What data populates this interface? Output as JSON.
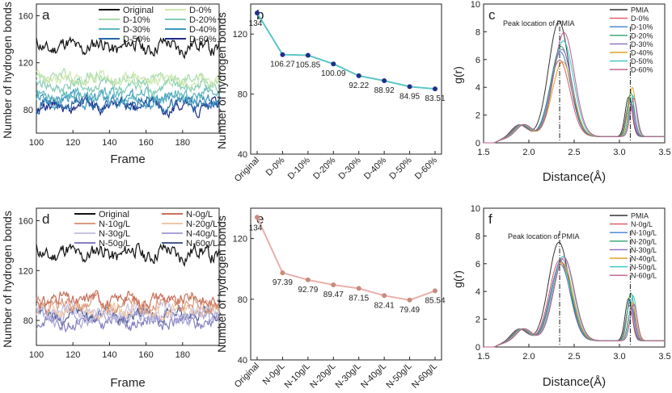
{
  "chart_data": [
    {
      "panel": "a",
      "type": "line",
      "xlabel": "Frame",
      "ylabel": "Number of hydrogen bonds",
      "xlim": [
        100,
        200
      ],
      "ylim": [
        60,
        170
      ],
      "xticks": [
        "100",
        "120",
        "140",
        "160",
        "180"
      ],
      "xtick_values": [
        100,
        120,
        140,
        160,
        180
      ],
      "yticks": [
        "80",
        "120",
        "160"
      ],
      "ytick_values": [
        80,
        120,
        160
      ],
      "legend": [
        {
          "name": "Original",
          "color": "#111111"
        },
        {
          "name": "D-0%",
          "color": "#cfe8b0"
        },
        {
          "name": "D-10%",
          "color": "#a9dcaa"
        },
        {
          "name": "D-20%",
          "color": "#85ccb5"
        },
        {
          "name": "D-30%",
          "color": "#5db7c0"
        },
        {
          "name": "D-40%",
          "color": "#3d97bf"
        },
        {
          "name": "D-50%",
          "color": "#2468a8"
        },
        {
          "name": "D-60%",
          "color": "#1d2d87"
        }
      ],
      "series": [
        {
          "name": "Original",
          "mean": 134,
          "amp": 6,
          "seed": 11,
          "color": "#111111"
        },
        {
          "name": "D-0%",
          "mean": 106,
          "amp": 5,
          "seed": 23,
          "color": "#cfe8b0"
        },
        {
          "name": "D-10%",
          "mean": 106,
          "amp": 5,
          "seed": 37,
          "color": "#a9dcaa"
        },
        {
          "name": "D-20%",
          "mean": 100,
          "amp": 5,
          "seed": 41,
          "color": "#85ccb5"
        },
        {
          "name": "D-30%",
          "mean": 92,
          "amp": 5,
          "seed": 53,
          "color": "#5db7c0"
        },
        {
          "name": "D-40%",
          "mean": 89,
          "amp": 5,
          "seed": 67,
          "color": "#3d97bf"
        },
        {
          "name": "D-50%",
          "mean": 85,
          "amp": 5,
          "seed": 71,
          "color": "#2468a8"
        },
        {
          "name": "D-60%",
          "mean": 83,
          "amp": 5,
          "seed": 89,
          "color": "#1d2d87"
        }
      ]
    },
    {
      "panel": "b",
      "type": "line",
      "ylabel": "Number of hydrogen bonds",
      "categories": [
        "Original",
        "D-0%",
        "D-10%",
        "D-20%",
        "D-30%",
        "D-40%",
        "D-50%",
        "D-60%"
      ],
      "values": [
        134,
        106.27,
        105.85,
        100.09,
        92.22,
        88.92,
        84.95,
        83.51
      ],
      "labels": [
        "134",
        "106.27",
        "105.85",
        "100.09",
        "92.22",
        "88.92",
        "84.95",
        "83.51"
      ],
      "ylim": [
        40,
        140
      ],
      "yticks": [
        "40",
        "80",
        "120"
      ],
      "ytick_values": [
        40,
        80,
        120
      ],
      "line_color": "#5cc6c3",
      "marker_color": "#1f2f8a"
    },
    {
      "panel": "c",
      "type": "line",
      "xlabel": "Distance(Å)",
      "ylabel": "g(r)",
      "xlim": [
        1.5,
        3.5
      ],
      "ylim": [
        0,
        10
      ],
      "xticks": [
        "1.5",
        "2.0",
        "2.5",
        "3.0",
        "3.5"
      ],
      "xtick_values": [
        1.5,
        2.0,
        2.5,
        3.0,
        3.5
      ],
      "yticks": [
        "0",
        "2",
        "4",
        "6",
        "8",
        "10"
      ],
      "ytick_values": [
        0,
        2,
        4,
        6,
        8,
        10
      ],
      "annotation": "Peak location of PMIA",
      "peak_marks": [
        2.34,
        3.12
      ],
      "legend": [
        {
          "name": "PMIA",
          "color": "#333333"
        },
        {
          "name": "D-0%",
          "color": "#e0525e"
        },
        {
          "name": "D-10%",
          "color": "#3e7fd6"
        },
        {
          "name": "D-20%",
          "color": "#2ea56d"
        },
        {
          "name": "D-30%",
          "color": "#8f6cc0"
        },
        {
          "name": "D-40%",
          "color": "#e3a020"
        },
        {
          "name": "D-50%",
          "color": "#2fc6c8"
        },
        {
          "name": "D-60%",
          "color": "#c05a8c"
        }
      ],
      "series": [
        {
          "name": "PMIA",
          "peak1": 8.8,
          "peak2": 3.4,
          "color": "#333333"
        },
        {
          "name": "D-0%",
          "peak1": 6.0,
          "peak2": 3.0,
          "color": "#e0525e"
        },
        {
          "name": "D-10%",
          "peak1": 6.6,
          "peak2": 3.2,
          "color": "#3e7fd6"
        },
        {
          "name": "D-20%",
          "peak1": 7.0,
          "peak2": 3.7,
          "color": "#2ea56d"
        },
        {
          "name": "D-30%",
          "peak1": 6.8,
          "peak2": 2.9,
          "color": "#8f6cc0"
        },
        {
          "name": "D-40%",
          "peak1": 5.9,
          "peak2": 4.1,
          "color": "#e3a020"
        },
        {
          "name": "D-50%",
          "peak1": 7.4,
          "peak2": 3.5,
          "color": "#2fc6c8"
        },
        {
          "name": "D-60%",
          "peak1": 8.0,
          "peak2": 3.3,
          "color": "#c05a8c"
        }
      ]
    },
    {
      "panel": "d",
      "type": "line",
      "xlabel": "Frame",
      "ylabel": "Number of hydrogen bonds",
      "xlim": [
        100,
        200
      ],
      "ylim": [
        60,
        170
      ],
      "xticks": [
        "100",
        "120",
        "140",
        "160",
        "180"
      ],
      "xtick_values": [
        100,
        120,
        140,
        160,
        180
      ],
      "yticks": [
        "80",
        "120",
        "160"
      ],
      "ytick_values": [
        80,
        120,
        160
      ],
      "legend": [
        {
          "name": "Original",
          "color": "#111111"
        },
        {
          "name": "N-0g/L",
          "color": "#c8705a"
        },
        {
          "name": "N-10g/L",
          "color": "#d99a7e"
        },
        {
          "name": "N-20g/L",
          "color": "#f2c7a5"
        },
        {
          "name": "N-30g/L",
          "color": "#c8c4e0"
        },
        {
          "name": "N-40g/L",
          "color": "#a9a4d6"
        },
        {
          "name": "N-50g/L",
          "color": "#8480bf"
        },
        {
          "name": "N-60g/L",
          "color": "#4a5a8c"
        }
      ],
      "series": [
        {
          "name": "Original",
          "mean": 134,
          "amp": 6,
          "seed": 11,
          "color": "#111111"
        },
        {
          "name": "N-0g/L",
          "mean": 97,
          "amp": 5,
          "seed": 31,
          "color": "#c8705a"
        },
        {
          "name": "N-10g/L",
          "mean": 93,
          "amp": 5,
          "seed": 43,
          "color": "#d99a7e"
        },
        {
          "name": "N-20g/L",
          "mean": 89,
          "amp": 5,
          "seed": 59,
          "color": "#f2c7a5"
        },
        {
          "name": "N-30g/L",
          "mean": 87,
          "amp": 5,
          "seed": 61,
          "color": "#c8c4e0"
        },
        {
          "name": "N-40g/L",
          "mean": 82,
          "amp": 5,
          "seed": 73,
          "color": "#a9a4d6"
        },
        {
          "name": "N-50g/L",
          "mean": 79,
          "amp": 5,
          "seed": 83,
          "color": "#8480bf"
        },
        {
          "name": "N-60g/L",
          "mean": 85,
          "amp": 5,
          "seed": 97,
          "color": "#4a5a8c"
        }
      ]
    },
    {
      "panel": "e",
      "type": "line",
      "ylabel": "Number of hydrogen bonds",
      "categories": [
        "Original",
        "N-0g/L",
        "N-10g/L",
        "N-20g/L",
        "N-30g/L",
        "N-40g/L",
        "N-50g/L",
        "N-60g/L"
      ],
      "values": [
        134,
        97.39,
        92.79,
        89.47,
        87.15,
        82.41,
        79.49,
        85.54
      ],
      "labels": [
        "134",
        "97.39",
        "92.79",
        "89.47",
        "87.15",
        "82.41",
        "79.49",
        "85.54"
      ],
      "ylim": [
        40,
        140
      ],
      "yticks": [
        "40",
        "80",
        "120"
      ],
      "ytick_values": [
        40,
        80,
        120
      ],
      "line_color": "#eab0ac",
      "marker_color": "#c98a7c"
    },
    {
      "panel": "f",
      "type": "line",
      "xlabel": "Distance(Å)",
      "ylabel": "g(r)",
      "xlim": [
        1.5,
        3.5
      ],
      "ylim": [
        0,
        10
      ],
      "xticks": [
        "1.5",
        "2.0",
        "2.5",
        "3.0",
        "3.5"
      ],
      "xtick_values": [
        1.5,
        2.0,
        2.5,
        3.0,
        3.5
      ],
      "yticks": [
        "0",
        "2",
        "4",
        "6",
        "8",
        "10"
      ],
      "ytick_values": [
        0,
        2,
        4,
        6,
        8,
        10
      ],
      "annotation": "Peak location of PMIA",
      "peak_marks": [
        2.34,
        3.12
      ],
      "legend": [
        {
          "name": "PMIA",
          "color": "#333333"
        },
        {
          "name": "N-0g/L",
          "color": "#e0525e"
        },
        {
          "name": "N-10g/L",
          "color": "#3e7fd6"
        },
        {
          "name": "N-20g/L",
          "color": "#2ea56d"
        },
        {
          "name": "N-30g/L",
          "color": "#8f6cc0"
        },
        {
          "name": "N-40g/L",
          "color": "#e3a020"
        },
        {
          "name": "N-50g/L",
          "color": "#2fc6c8"
        },
        {
          "name": "N-60g/L",
          "color": "#c05a8c"
        }
      ],
      "series": [
        {
          "name": "PMIA",
          "peak1": 7.6,
          "peak2": 3.6,
          "color": "#333333"
        },
        {
          "name": "N-0g/L",
          "peak1": 6.3,
          "peak2": 3.1,
          "color": "#e0525e"
        },
        {
          "name": "N-10g/L",
          "peak1": 6.0,
          "peak2": 3.4,
          "color": "#3e7fd6"
        },
        {
          "name": "N-20g/L",
          "peak1": 6.2,
          "peak2": 4.0,
          "color": "#2ea56d"
        },
        {
          "name": "N-30g/L",
          "peak1": 6.4,
          "peak2": 3.0,
          "color": "#8f6cc0"
        },
        {
          "name": "N-40g/L",
          "peak1": 6.1,
          "peak2": 3.3,
          "color": "#e3a020"
        },
        {
          "name": "N-50g/L",
          "peak1": 6.6,
          "peak2": 3.8,
          "color": "#2fc6c8"
        },
        {
          "name": "N-60g/L",
          "peak1": 6.5,
          "peak2": 3.2,
          "color": "#c05a8c"
        }
      ]
    }
  ],
  "panel_letters": [
    "a",
    "b",
    "c",
    "d",
    "e",
    "f"
  ]
}
